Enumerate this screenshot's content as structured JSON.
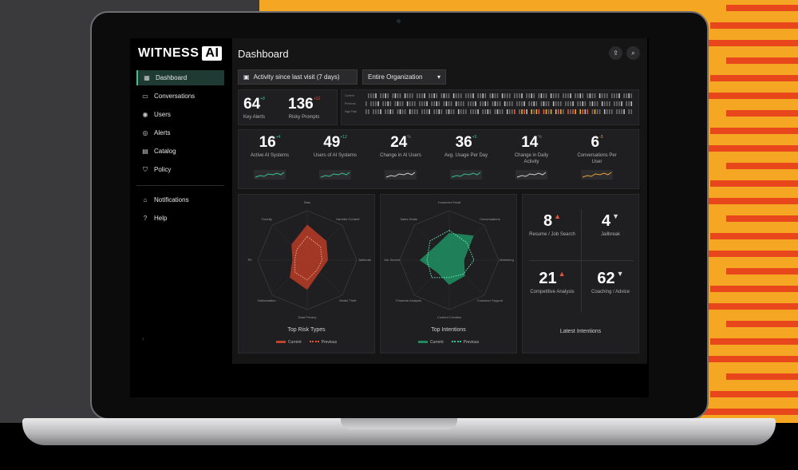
{
  "brand": {
    "name": "WITNESS",
    "badge": "AI"
  },
  "sidebar": {
    "items": [
      {
        "label": "Dashboard",
        "icon": "grid-icon",
        "active": true
      },
      {
        "label": "Conversations",
        "icon": "chat-icon"
      },
      {
        "label": "Users",
        "icon": "user-icon"
      },
      {
        "label": "Alerts",
        "icon": "alert-icon"
      },
      {
        "label": "Catalog",
        "icon": "catalog-icon"
      },
      {
        "label": "Policy",
        "icon": "shield-icon"
      }
    ],
    "secondary": [
      {
        "label": "Notifications",
        "icon": "bell-icon"
      },
      {
        "label": "Help",
        "icon": "help-icon"
      }
    ]
  },
  "header": {
    "title": "Dashboard"
  },
  "filters": {
    "activity": "Activity since last visit (7 days)",
    "scope": "Entire Organization"
  },
  "alerts_panel": {
    "key_alerts": {
      "value": "64",
      "delta": "+8",
      "label": "Key Alerts"
    },
    "risky_prompts": {
      "value": "136",
      "delta": "+12",
      "label": "Risky Prompts"
    }
  },
  "stats": [
    {
      "value": "16",
      "delta": "+4",
      "label": "Active AI Systems"
    },
    {
      "value": "49",
      "delta": "+12",
      "label": "Users of AI Systems"
    },
    {
      "value": "24",
      "delta": "%",
      "label": "Change in AI Users"
    },
    {
      "value": "36",
      "delta": "+5",
      "label": "Avg. Usage Per Day"
    },
    {
      "value": "14",
      "delta": "%",
      "label": "Change in Daily Activity"
    },
    {
      "value": "6",
      "delta": "-3",
      "label": "Conversations Per User"
    }
  ],
  "risk_panel": {
    "title": "Top Risk Types",
    "legend_current": "Current",
    "legend_previous": "Previous",
    "axes": [
      "Bias",
      "Harmful Content",
      "Jailbreak",
      "Model Theft",
      "Data Privacy",
      "Hallucination",
      "PII",
      "Toxicity"
    ],
    "current": [
      0.72,
      0.55,
      0.42,
      0.35,
      0.6,
      0.5,
      0.3,
      0.45
    ],
    "previous": [
      0.48,
      0.38,
      0.3,
      0.28,
      0.4,
      0.35,
      0.25,
      0.3
    ]
  },
  "intentions_panel": {
    "title": "Top Intentions",
    "legend_current": "Current",
    "legend_previous": "Previous",
    "axes": [
      "Customer Email",
      "Conversations",
      "Marketing",
      "Customer Support",
      "Content Creation",
      "Financial Analysis",
      "Job Search",
      "Sales Deals"
    ],
    "current": [
      0.55,
      0.7,
      0.3,
      0.45,
      0.5,
      0.35,
      0.6,
      0.4
    ],
    "previous": [
      0.6,
      0.5,
      0.5,
      0.4,
      0.35,
      0.5,
      0.45,
      0.55
    ]
  },
  "latest_intentions": {
    "title": "Latest Intentions",
    "items": [
      {
        "value": "8",
        "arrow": "▲",
        "label": "Resume / Job Search",
        "color": "#e8533a"
      },
      {
        "value": "4",
        "arrow": "▼",
        "label": "Jailbreak",
        "color": "#d8d8d8"
      },
      {
        "value": "21",
        "arrow": "▲",
        "label": "Competitive Analysis",
        "color": "#e8533a"
      },
      {
        "value": "62",
        "arrow": "▼",
        "label": "Coaching / Advice",
        "color": "#d8d8d8"
      }
    ]
  },
  "colors": {
    "accent": "#35c48f",
    "risk": "#c0432c",
    "intent": "#1f8a5e",
    "warn": "#e8533a"
  }
}
